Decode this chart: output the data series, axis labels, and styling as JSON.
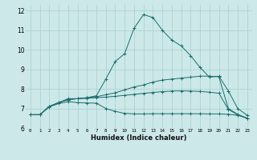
{
  "xlabel": "Humidex (Indice chaleur)",
  "bg_color": "#cce8e8",
  "line_color": "#1a6e6e",
  "grid_color": "#aacfcf",
  "xlim": [
    -0.5,
    23.5
  ],
  "ylim": [
    6,
    12.3
  ],
  "xticks": [
    0,
    1,
    2,
    3,
    4,
    5,
    6,
    7,
    8,
    9,
    10,
    11,
    12,
    13,
    14,
    15,
    16,
    17,
    18,
    19,
    20,
    21,
    22,
    23
  ],
  "yticks": [
    6,
    7,
    8,
    9,
    10,
    11,
    12
  ],
  "curves": [
    [
      6.68,
      6.68,
      7.1,
      7.3,
      7.5,
      7.5,
      7.55,
      7.65,
      8.5,
      9.4,
      9.8,
      11.1,
      11.8,
      11.65,
      11.0,
      10.5,
      10.2,
      9.7,
      9.1,
      8.6,
      8.65,
      7.9,
      7.0,
      6.65
    ],
    [
      6.68,
      6.68,
      7.1,
      7.3,
      7.45,
      7.5,
      7.55,
      7.6,
      7.7,
      7.8,
      7.95,
      8.1,
      8.2,
      8.35,
      8.45,
      8.5,
      8.55,
      8.6,
      8.65,
      8.65,
      8.62,
      7.0,
      6.7,
      6.5
    ],
    [
      6.68,
      6.68,
      7.1,
      7.3,
      7.45,
      7.5,
      7.52,
      7.55,
      7.58,
      7.62,
      7.67,
      7.72,
      7.77,
      7.82,
      7.86,
      7.89,
      7.9,
      7.89,
      7.87,
      7.83,
      7.78,
      6.95,
      6.67,
      6.5
    ],
    [
      6.68,
      6.68,
      7.08,
      7.25,
      7.35,
      7.3,
      7.28,
      7.27,
      7.0,
      6.85,
      6.75,
      6.72,
      6.72,
      6.73,
      6.73,
      6.73,
      6.73,
      6.73,
      6.73,
      6.72,
      6.72,
      6.7,
      6.65,
      6.5
    ]
  ]
}
